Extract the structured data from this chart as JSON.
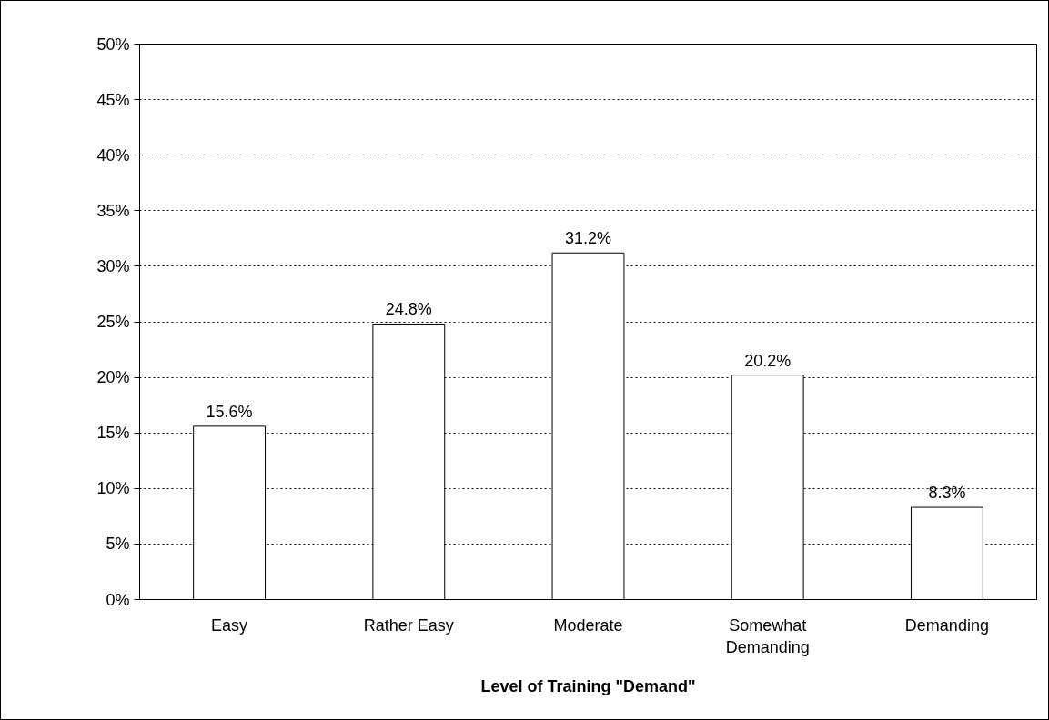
{
  "chart_data": {
    "type": "bar",
    "xlabel": "Level of Training \"Demand\"",
    "categories": [
      "Easy",
      "Rather Easy",
      "Moderate",
      "Somewhat\nDemanding",
      "Demanding"
    ],
    "values": [
      15.6,
      24.8,
      31.2,
      20.2,
      8.3
    ],
    "value_labels": [
      "15.6%",
      "24.8%",
      "31.2%",
      "20.2%",
      "8.3%"
    ],
    "color": "#ffffff",
    "ylim": [
      0,
      50
    ],
    "yticks": [
      {
        "value": 0,
        "label": "0%"
      },
      {
        "value": 5,
        "label": "5%"
      },
      {
        "value": 10,
        "label": "10%"
      },
      {
        "value": 15,
        "label": "15%"
      },
      {
        "value": 20,
        "label": "20%"
      },
      {
        "value": 25,
        "label": "25%"
      },
      {
        "value": 30,
        "label": "30%"
      },
      {
        "value": 35,
        "label": "35%"
      },
      {
        "value": 40,
        "label": "40%"
      },
      {
        "value": 45,
        "label": "45%"
      },
      {
        "value": 50,
        "label": "50%"
      }
    ],
    "grid": "y"
  }
}
